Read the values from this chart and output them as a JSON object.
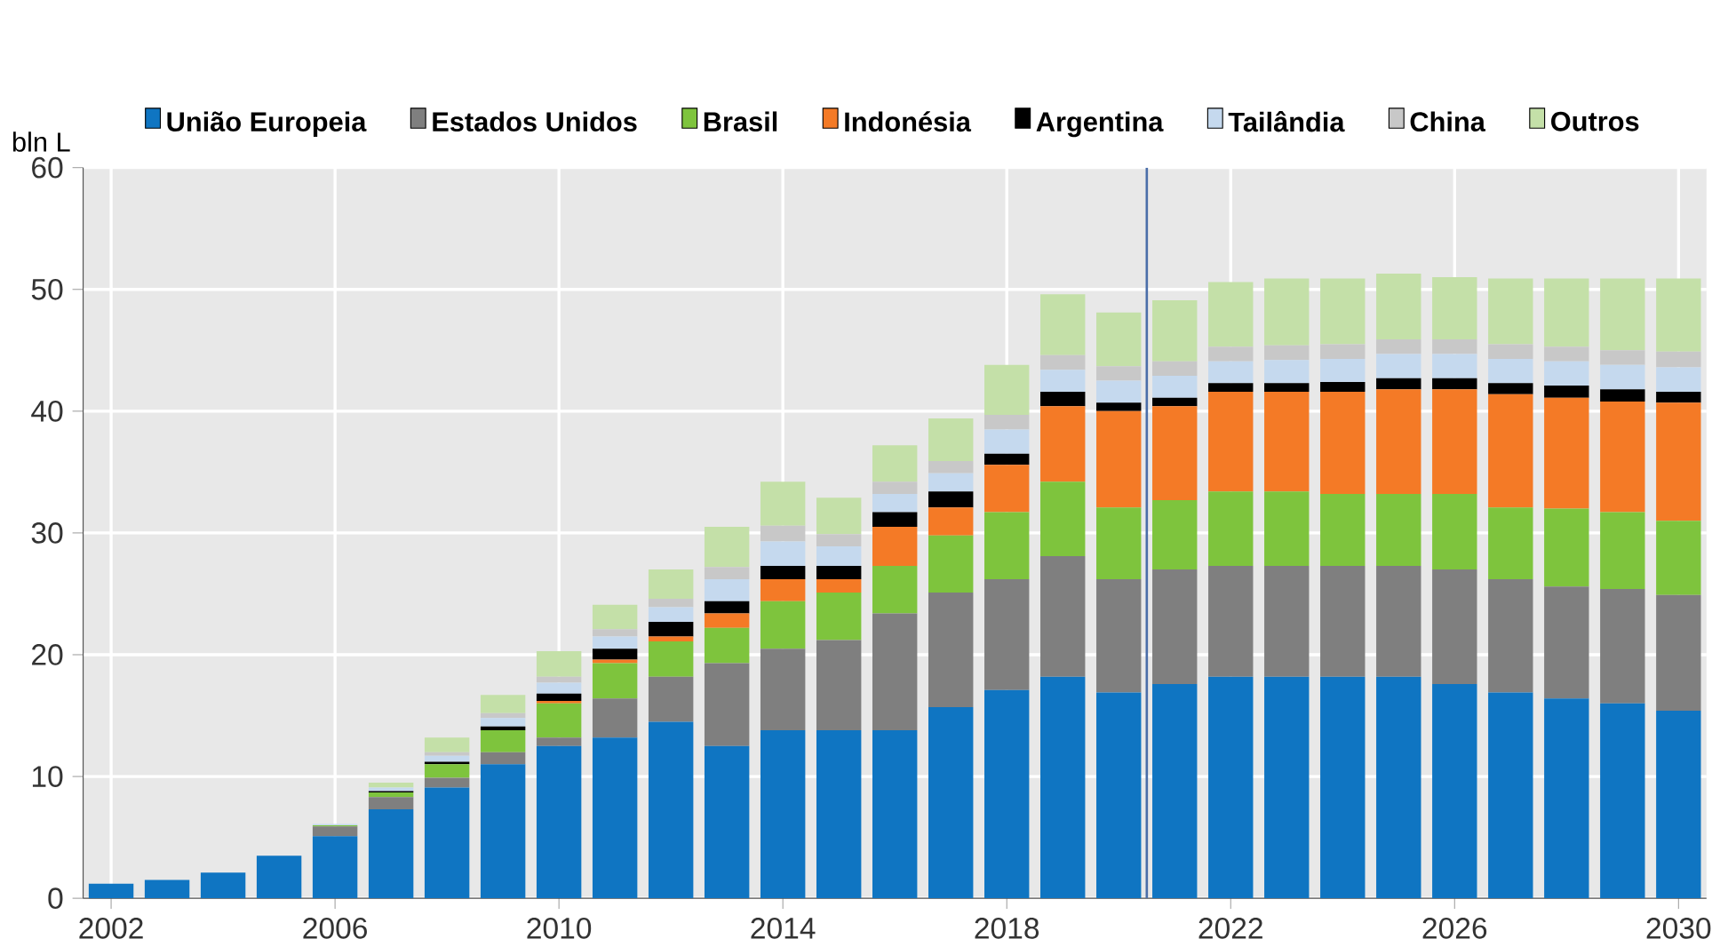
{
  "chart_data": {
    "type": "bar",
    "stacked": true,
    "ylabel": "bln L",
    "x": [
      2002,
      2003,
      2004,
      2005,
      2006,
      2007,
      2008,
      2009,
      2010,
      2011,
      2012,
      2013,
      2014,
      2015,
      2016,
      2017,
      2018,
      2019,
      2020,
      2021,
      2022,
      2023,
      2024,
      2025,
      2026,
      2027,
      2028,
      2029,
      2030
    ],
    "xlim": [
      2001.5,
      2030.5
    ],
    "xticks": [
      2002,
      2006,
      2010,
      2014,
      2018,
      2022,
      2026,
      2030
    ],
    "ylim": [
      0,
      60
    ],
    "yticks": [
      0,
      10,
      20,
      30,
      40,
      50,
      60
    ],
    "grid": true,
    "legend": "top",
    "ref_lines": [
      {
        "axis": "x",
        "value": 2020.5,
        "color": "#4a6ea9"
      }
    ],
    "series": [
      {
        "name": "União Europeia",
        "color": "#0f75c2",
        "values": [
          1.2,
          1.5,
          2.1,
          3.5,
          5.1,
          7.3,
          9.1,
          11.0,
          12.5,
          13.2,
          14.5,
          12.5,
          13.8,
          13.8,
          13.8,
          15.7,
          17.1,
          18.2,
          16.9,
          17.6,
          18.2,
          18.2,
          18.2,
          18.2,
          17.6,
          16.9,
          16.4,
          16.0,
          15.4
        ]
      },
      {
        "name": "Estados Unidos",
        "color": "#7f7f7f",
        "values": [
          0,
          0,
          0,
          0,
          0.8,
          1.0,
          0.8,
          1.0,
          0.7,
          3.2,
          3.7,
          6.8,
          6.7,
          7.4,
          9.6,
          9.4,
          9.1,
          9.9,
          9.3,
          9.4,
          9.1,
          9.1,
          9.1,
          9.1,
          9.4,
          9.3,
          9.2,
          9.4,
          9.5
        ]
      },
      {
        "name": "Brasil",
        "color": "#7ec43d",
        "values": [
          0,
          0,
          0,
          0,
          0.1,
          0.4,
          1.1,
          1.8,
          2.8,
          2.9,
          2.9,
          2.9,
          3.9,
          3.9,
          3.9,
          4.7,
          5.5,
          6.1,
          5.9,
          5.7,
          6.1,
          6.1,
          5.9,
          5.9,
          6.2,
          5.9,
          6.4,
          6.3,
          6.1
        ]
      },
      {
        "name": "Indonésia",
        "color": "#f47a26",
        "values": [
          0,
          0,
          0,
          0,
          0,
          0,
          0,
          0,
          0.2,
          0.3,
          0.4,
          1.2,
          1.8,
          1.1,
          3.2,
          2.3,
          3.9,
          6.2,
          7.9,
          7.7,
          8.2,
          8.2,
          8.4,
          8.6,
          8.6,
          9.3,
          9.1,
          9.1,
          9.7
        ]
      },
      {
        "name": "Argentina",
        "color": "#000000",
        "values": [
          0,
          0,
          0,
          0,
          0,
          0.1,
          0.2,
          0.3,
          0.6,
          0.9,
          1.2,
          1.0,
          1.1,
          1.1,
          1.2,
          1.3,
          0.9,
          1.2,
          0.7,
          0.7,
          0.7,
          0.7,
          0.8,
          0.9,
          0.9,
          0.9,
          1.0,
          1.0,
          0.9
        ]
      },
      {
        "name": "Tailândia",
        "color": "#c5d9ee",
        "values": [
          0,
          0,
          0,
          0,
          0.1,
          0.3,
          0.5,
          0.7,
          0.9,
          1.0,
          1.2,
          1.8,
          2.0,
          1.6,
          1.5,
          1.5,
          2.0,
          1.8,
          1.8,
          1.8,
          1.8,
          1.9,
          1.9,
          2.0,
          2.0,
          2.0,
          2.0,
          2.0,
          2.0
        ]
      },
      {
        "name": "China",
        "color": "#c8c8c8",
        "values": [
          0,
          0,
          0,
          0,
          0,
          null,
          0.3,
          0.4,
          0.5,
          0.6,
          0.7,
          1.0,
          1.3,
          1.0,
          1.0,
          1.0,
          1.2,
          1.2,
          1.2,
          1.2,
          1.2,
          1.2,
          1.2,
          1.2,
          1.2,
          1.2,
          1.2,
          1.2,
          1.3
        ]
      },
      {
        "name": "Outros",
        "color": "#c4e0a8",
        "values": [
          0,
          0,
          0,
          0,
          null,
          0.4,
          1.2,
          1.5,
          2.1,
          2.0,
          2.4,
          3.3,
          3.6,
          3.0,
          3.0,
          3.5,
          4.1,
          5.0,
          4.4,
          5.0,
          5.3,
          5.5,
          5.4,
          5.4,
          5.1,
          5.4,
          5.6,
          5.9,
          6.0
        ]
      }
    ]
  }
}
